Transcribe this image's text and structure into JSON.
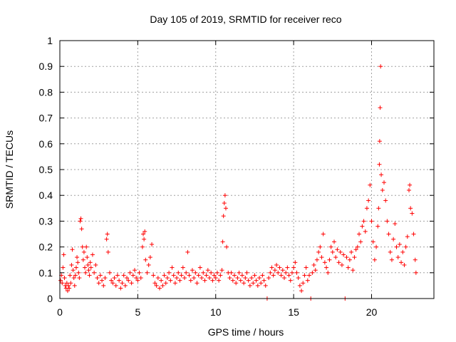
{
  "chart_data": {
    "type": "scatter",
    "title": "Day 105 of 2019, SRMTID for receiver reco",
    "xlabel": "GPS time / hours",
    "ylabel": "SRMTID / TECUs",
    "xlim": [
      0,
      24
    ],
    "ylim": [
      0,
      1
    ],
    "xticks": [
      0,
      5,
      10,
      15,
      20
    ],
    "xtick_labels": [
      "0",
      "5",
      "10",
      "15",
      "20"
    ],
    "yticks": [
      0,
      0.1,
      0.2,
      0.3,
      0.4,
      0.5,
      0.6,
      0.7,
      0.8,
      0.9,
      1
    ],
    "ytick_labels": [
      "0",
      "0.1",
      "0.2",
      "0.3",
      "0.4",
      "0.5",
      "0.6",
      "0.7",
      "0.8",
      "0.9",
      "1"
    ],
    "grid": true,
    "marker": "+",
    "series": [
      {
        "name": "SRMTID",
        "color": "#ff0000",
        "points": [
          [
            0.05,
            0.07
          ],
          [
            0.1,
            0.09
          ],
          [
            0.15,
            0.06
          ],
          [
            0.2,
            0.12
          ],
          [
            0.25,
            0.17
          ],
          [
            0.3,
            0.08
          ],
          [
            0.35,
            0.05
          ],
          [
            0.4,
            0.04
          ],
          [
            0.45,
            0.06
          ],
          [
            0.5,
            0.03
          ],
          [
            0.55,
            0.05
          ],
          [
            0.6,
            0.04
          ],
          [
            0.65,
            0.09
          ],
          [
            0.7,
            0.06
          ],
          [
            0.75,
            0.13
          ],
          [
            0.8,
            0.19
          ],
          [
            0.85,
            0.11
          ],
          [
            0.9,
            0.08
          ],
          [
            0.95,
            0.05
          ],
          [
            1.0,
            0.09
          ],
          [
            1.05,
            0.12
          ],
          [
            1.1,
            0.16
          ],
          [
            1.15,
            0.14
          ],
          [
            1.2,
            0.1
          ],
          [
            1.25,
            0.08
          ],
          [
            1.3,
            0.3
          ],
          [
            1.35,
            0.31
          ],
          [
            1.4,
            0.27
          ],
          [
            1.45,
            0.2
          ],
          [
            1.5,
            0.15
          ],
          [
            1.55,
            0.18
          ],
          [
            1.6,
            0.12
          ],
          [
            1.65,
            0.1
          ],
          [
            1.7,
            0.2
          ],
          [
            1.75,
            0.16
          ],
          [
            1.8,
            0.13
          ],
          [
            1.85,
            0.11
          ],
          [
            1.9,
            0.09
          ],
          [
            1.95,
            0.14
          ],
          [
            2.0,
            0.12
          ],
          [
            2.1,
            0.17
          ],
          [
            2.2,
            0.1
          ],
          [
            2.3,
            0.13
          ],
          [
            2.4,
            0.08
          ],
          [
            2.5,
            0.06
          ],
          [
            2.6,
            0.09
          ],
          [
            2.7,
            0.07
          ],
          [
            2.8,
            0.05
          ],
          [
            2.9,
            0.08
          ],
          [
            3.0,
            0.23
          ],
          [
            3.05,
            0.25
          ],
          [
            3.1,
            0.18
          ],
          [
            3.2,
            0.1
          ],
          [
            3.3,
            0.07
          ],
          [
            3.4,
            0.06
          ],
          [
            3.5,
            0.08
          ],
          [
            3.6,
            0.05
          ],
          [
            3.7,
            0.09
          ],
          [
            3.8,
            0.07
          ],
          [
            3.9,
            0.04
          ],
          [
            4.0,
            0.06
          ],
          [
            4.1,
            0.09
          ],
          [
            4.2,
            0.05
          ],
          [
            4.3,
            0.08
          ],
          [
            4.4,
            0.07
          ],
          [
            4.5,
            0.1
          ],
          [
            4.6,
            0.06
          ],
          [
            4.7,
            0.09
          ],
          [
            4.8,
            0.11
          ],
          [
            4.9,
            0.08
          ],
          [
            5.0,
            0.07
          ],
          [
            5.1,
            0.1
          ],
          [
            5.2,
            0.08
          ],
          [
            5.3,
            0.2
          ],
          [
            5.35,
            0.25
          ],
          [
            5.4,
            0.23
          ],
          [
            5.45,
            0.26
          ],
          [
            5.5,
            0.15
          ],
          [
            5.6,
            0.1
          ],
          [
            5.7,
            0.13
          ],
          [
            5.8,
            0.16
          ],
          [
            5.9,
            0.21
          ],
          [
            6.0,
            0.09
          ],
          [
            6.1,
            0.06
          ],
          [
            6.2,
            0.05
          ],
          [
            6.3,
            0.08
          ],
          [
            6.4,
            0.04
          ],
          [
            6.5,
            0.07
          ],
          [
            6.6,
            0.05
          ],
          [
            6.7,
            0.09
          ],
          [
            6.8,
            0.06
          ],
          [
            6.9,
            0.08
          ],
          [
            7.0,
            0.1
          ],
          [
            7.1,
            0.07
          ],
          [
            7.2,
            0.12
          ],
          [
            7.3,
            0.09
          ],
          [
            7.4,
            0.06
          ],
          [
            7.5,
            0.08
          ],
          [
            7.6,
            0.1
          ],
          [
            7.7,
            0.07
          ],
          [
            7.8,
            0.09
          ],
          [
            7.9,
            0.12
          ],
          [
            8.0,
            0.08
          ],
          [
            8.1,
            0.1
          ],
          [
            8.2,
            0.18
          ],
          [
            8.3,
            0.09
          ],
          [
            8.4,
            0.07
          ],
          [
            8.5,
            0.11
          ],
          [
            8.6,
            0.08
          ],
          [
            8.7,
            0.1
          ],
          [
            8.8,
            0.06
          ],
          [
            8.9,
            0.09
          ],
          [
            9.0,
            0.12
          ],
          [
            9.1,
            0.08
          ],
          [
            9.2,
            0.1
          ],
          [
            9.3,
            0.07
          ],
          [
            9.4,
            0.09
          ],
          [
            9.5,
            0.11
          ],
          [
            9.6,
            0.08
          ],
          [
            9.7,
            0.1
          ],
          [
            9.8,
            0.07
          ],
          [
            9.9,
            0.09
          ],
          [
            10.0,
            0.08
          ],
          [
            10.1,
            0.1
          ],
          [
            10.2,
            0.07
          ],
          [
            10.3,
            0.09
          ],
          [
            10.4,
            0.11
          ],
          [
            10.45,
            0.22
          ],
          [
            10.5,
            0.32
          ],
          [
            10.55,
            0.37
          ],
          [
            10.6,
            0.4
          ],
          [
            10.65,
            0.35
          ],
          [
            10.7,
            0.2
          ],
          [
            10.8,
            0.1
          ],
          [
            10.9,
            0.08
          ],
          [
            11.0,
            0.1
          ],
          [
            11.1,
            0.07
          ],
          [
            11.2,
            0.09
          ],
          [
            11.3,
            0.06
          ],
          [
            11.4,
            0.08
          ],
          [
            11.5,
            0.1
          ],
          [
            11.6,
            0.07
          ],
          [
            11.7,
            0.09
          ],
          [
            11.8,
            0.06
          ],
          [
            11.9,
            0.08
          ],
          [
            12.0,
            0.1
          ],
          [
            12.1,
            0.07
          ],
          [
            12.2,
            0.05
          ],
          [
            12.3,
            0.08
          ],
          [
            12.4,
            0.06
          ],
          [
            12.5,
            0.09
          ],
          [
            12.6,
            0.07
          ],
          [
            12.7,
            0.05
          ],
          [
            12.8,
            0.08
          ],
          [
            12.9,
            0.06
          ],
          [
            13.0,
            0.09
          ],
          [
            13.1,
            0.07
          ],
          [
            13.2,
            0.05
          ],
          [
            13.3,
            0.0
          ],
          [
            13.4,
            0.08
          ],
          [
            13.5,
            0.1
          ],
          [
            13.6,
            0.12
          ],
          [
            13.7,
            0.09
          ],
          [
            13.8,
            0.11
          ],
          [
            13.9,
            0.13
          ],
          [
            14.0,
            0.1
          ],
          [
            14.1,
            0.12
          ],
          [
            14.2,
            0.09
          ],
          [
            14.3,
            0.11
          ],
          [
            14.4,
            0.08
          ],
          [
            14.5,
            0.1
          ],
          [
            14.6,
            0.12
          ],
          [
            14.7,
            0.09
          ],
          [
            14.8,
            0.07
          ],
          [
            14.9,
            0.1
          ],
          [
            15.0,
            0.12
          ],
          [
            15.1,
            0.14
          ],
          [
            15.2,
            0.1
          ],
          [
            15.3,
            0.08
          ],
          [
            15.4,
            0.05
          ],
          [
            15.5,
            0.03
          ],
          [
            15.6,
            0.06
          ],
          [
            15.7,
            0.09
          ],
          [
            15.8,
            0.12
          ],
          [
            15.9,
            0.07
          ],
          [
            16.0,
            0.09
          ],
          [
            16.1,
            0.0
          ],
          [
            16.2,
            0.1
          ],
          [
            16.3,
            0.13
          ],
          [
            16.4,
            0.11
          ],
          [
            16.5,
            0.15
          ],
          [
            16.6,
            0.18
          ],
          [
            16.7,
            0.2
          ],
          [
            16.8,
            0.16
          ],
          [
            16.9,
            0.25
          ],
          [
            17.0,
            0.14
          ],
          [
            17.1,
            0.12
          ],
          [
            17.2,
            0.1
          ],
          [
            17.3,
            0.15
          ],
          [
            17.4,
            0.2
          ],
          [
            17.5,
            0.18
          ],
          [
            17.6,
            0.22
          ],
          [
            17.7,
            0.16
          ],
          [
            17.8,
            0.19
          ],
          [
            17.9,
            0.14
          ],
          [
            18.0,
            0.18
          ],
          [
            18.1,
            0.13
          ],
          [
            18.2,
            0.17
          ],
          [
            18.3,
            0.0
          ],
          [
            18.4,
            0.16
          ],
          [
            18.5,
            0.12
          ],
          [
            18.6,
            0.15
          ],
          [
            18.7,
            0.18
          ],
          [
            18.8,
            0.11
          ],
          [
            18.9,
            0.16
          ],
          [
            19.0,
            0.19
          ],
          [
            19.1,
            0.2
          ],
          [
            19.2,
            0.25
          ],
          [
            19.3,
            0.22
          ],
          [
            19.4,
            0.28
          ],
          [
            19.5,
            0.3
          ],
          [
            19.6,
            0.26
          ],
          [
            19.7,
            0.35
          ],
          [
            19.8,
            0.38
          ],
          [
            19.9,
            0.44
          ],
          [
            20.0,
            0.3
          ],
          [
            20.1,
            0.22
          ],
          [
            20.2,
            0.15
          ],
          [
            20.3,
            0.2
          ],
          [
            20.4,
            0.28
          ],
          [
            20.45,
            0.35
          ],
          [
            20.5,
            0.52
          ],
          [
            20.52,
            0.61
          ],
          [
            20.55,
            0.74
          ],
          [
            20.58,
            0.9
          ],
          [
            20.62,
            0.48
          ],
          [
            20.7,
            0.42
          ],
          [
            20.8,
            0.45
          ],
          [
            20.9,
            0.38
          ],
          [
            21.0,
            0.3
          ],
          [
            21.1,
            0.25
          ],
          [
            21.2,
            0.18
          ],
          [
            21.3,
            0.15
          ],
          [
            21.4,
            0.23
          ],
          [
            21.5,
            0.29
          ],
          [
            21.6,
            0.2
          ],
          [
            21.7,
            0.16
          ],
          [
            21.8,
            0.21
          ],
          [
            21.9,
            0.14
          ],
          [
            22.0,
            0.18
          ],
          [
            22.1,
            0.13
          ],
          [
            22.2,
            0.2
          ],
          [
            22.3,
            0.24
          ],
          [
            22.4,
            0.42
          ],
          [
            22.45,
            0.44
          ],
          [
            22.5,
            0.35
          ],
          [
            22.6,
            0.33
          ],
          [
            22.7,
            0.25
          ],
          [
            22.8,
            0.15
          ],
          [
            22.85,
            0.1
          ]
        ]
      }
    ]
  }
}
